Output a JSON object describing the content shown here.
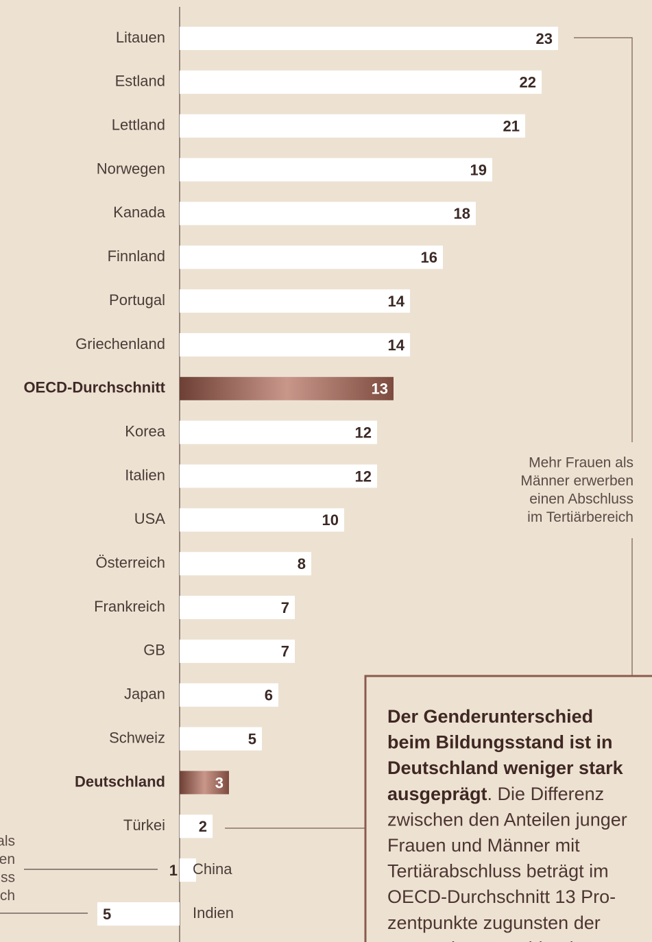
{
  "chart_data": {
    "type": "bar",
    "orientation": "horizontal",
    "categories": [
      "Litauen",
      "Estland",
      "Lettland",
      "Norwegen",
      "Kanada",
      "Finnland",
      "Portugal",
      "Griechenland",
      "OECD-Durchschnitt",
      "Korea",
      "Italien",
      "USA",
      "Österreich",
      "Frankreich",
      "GB",
      "Japan",
      "Schweiz",
      "Deutschland",
      "Türkei",
      "China",
      "Indien"
    ],
    "values": [
      23,
      22,
      21,
      19,
      18,
      16,
      14,
      14,
      13,
      12,
      12,
      10,
      8,
      7,
      7,
      6,
      5,
      3,
      2,
      1,
      -5
    ],
    "value_labels": [
      "23",
      "22",
      "21",
      "19",
      "18",
      "16",
      "14",
      "14",
      "13",
      "12",
      "12",
      "10",
      "8",
      "7",
      "7",
      "6",
      "5",
      "3",
      "2",
      "1",
      "5"
    ],
    "color": "#ffffff",
    "highlight": [
      8,
      17
    ],
    "highlight_colors": [
      "#6e4035",
      "#c9968a",
      "#7d4b3f"
    ],
    "labels_right_of_axis": [
      19,
      20
    ],
    "annotations": {
      "right": [
        "Mehr Frauen als",
        "Männer erwerben",
        "einen Abschluss",
        "im Tertiärbereich"
      ],
      "left": [
        "als",
        "en",
        "ss",
        "ch"
      ]
    },
    "box": {
      "lines": [
        [
          {
            "text": "Der Genderunterschied",
            "bold": true
          }
        ],
        [
          {
            "text": "beim Bildungsstand ist in",
            "bold": true
          }
        ],
        [
          {
            "text": "Deutschland weniger stark",
            "bold": true
          }
        ],
        [
          {
            "text": "ausgeprägt",
            "bold": true
          },
          {
            "text": ". Die Differenz",
            "bold": false
          }
        ],
        [
          {
            "text": "zwischen den Anteilen junger",
            "bold": false
          }
        ],
        [
          {
            "text": "Frauen und Männer mit",
            "bold": false
          }
        ],
        [
          {
            "text": "Tertiärabschluss beträgt im",
            "bold": false
          }
        ],
        [
          {
            "text": "OECD-Durchschnitt 13 Pro-",
            "bold": false
          }
        ],
        [
          {
            "text": "zentpunkte zugunsten der",
            "bold": false
          }
        ],
        [
          {
            "text": "Frauen in Deutschland",
            "bold": false
          }
        ]
      ]
    }
  }
}
